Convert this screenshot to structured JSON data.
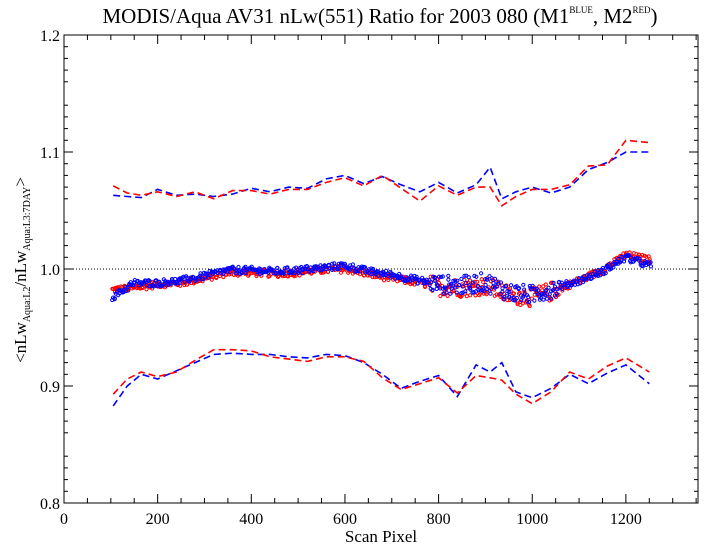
{
  "chart_data": {
    "type": "scatter",
    "title_main": "MODIS/Aqua AV31 nLw(551) Ratio for 2003 080 (M1",
    "title_sup1": "BLUE",
    "title_mid": ", M2",
    "title_sup2": "RED",
    "title_end": ")",
    "xlabel": "Scan Pixel",
    "ylabel_parts": [
      "<nLw",
      "Aqua:L2",
      "/nLw",
      "Aqua:L3:7DAY",
      ">"
    ],
    "xlim": [
      0,
      1354
    ],
    "ylim": [
      0.8,
      1.2
    ],
    "x_ticks": [
      0,
      200,
      400,
      600,
      800,
      1000,
      1200
    ],
    "x_tick_labels": [
      "0",
      "200",
      "400",
      "600",
      "800",
      "1000",
      "1200"
    ],
    "y_ticks": [
      0.8,
      0.9,
      1.0,
      1.1,
      1.2
    ],
    "y_tick_labels": [
      "0.8",
      "0.9",
      "1.0",
      "1.1",
      "1.2"
    ],
    "reference_line": 1.0,
    "colors": {
      "M1": "#0000ff",
      "M2": "#ff0000"
    },
    "mean_profile": {
      "x": [
        100,
        150,
        200,
        250,
        300,
        350,
        400,
        450,
        500,
        550,
        600,
        650,
        700,
        750,
        800,
        850,
        900,
        950,
        1000,
        1050,
        1100,
        1150,
        1200,
        1250
      ],
      "M1": [
        0.975,
        0.988,
        0.988,
        0.99,
        0.994,
        0.999,
        0.999,
        0.998,
        0.999,
        1.001,
        1.003,
        0.998,
        0.995,
        0.991,
        0.987,
        0.986,
        0.989,
        0.98,
        0.978,
        0.984,
        0.99,
        0.998,
        1.01,
        1.003
      ],
      "M2": [
        0.982,
        0.984,
        0.987,
        0.988,
        0.992,
        0.997,
        0.997,
        0.996,
        0.997,
        0.999,
        1.0,
        0.996,
        0.992,
        0.989,
        0.985,
        0.984,
        0.986,
        0.978,
        0.976,
        0.982,
        0.99,
        0.999,
        1.012,
        1.008
      ]
    },
    "upper_band": {
      "x": [
        105,
        135,
        165,
        200,
        240,
        280,
        320,
        360,
        400,
        440,
        480,
        520,
        560,
        600,
        640,
        680,
        720,
        760,
        800,
        840,
        880,
        910,
        935,
        965,
        1000,
        1040,
        1080,
        1120,
        1160,
        1200,
        1250
      ],
      "M1": [
        1.063,
        1.062,
        1.061,
        1.068,
        1.063,
        1.064,
        1.062,
        1.064,
        1.069,
        1.066,
        1.07,
        1.069,
        1.077,
        1.08,
        1.073,
        1.079,
        1.072,
        1.066,
        1.074,
        1.065,
        1.072,
        1.087,
        1.06,
        1.066,
        1.07,
        1.065,
        1.07,
        1.085,
        1.091,
        1.1,
        1.1
      ],
      "M2": [
        1.071,
        1.065,
        1.063,
        1.066,
        1.062,
        1.066,
        1.06,
        1.067,
        1.067,
        1.064,
        1.068,
        1.068,
        1.074,
        1.078,
        1.071,
        1.08,
        1.069,
        1.058,
        1.071,
        1.063,
        1.07,
        1.07,
        1.054,
        1.062,
        1.068,
        1.068,
        1.072,
        1.088,
        1.089,
        1.11,
        1.108
      ]
    },
    "lower_band": {
      "x": [
        105,
        135,
        165,
        200,
        240,
        280,
        320,
        360,
        400,
        440,
        480,
        520,
        560,
        600,
        640,
        680,
        720,
        760,
        800,
        840,
        880,
        910,
        935,
        965,
        1000,
        1040,
        1080,
        1120,
        1160,
        1200,
        1250
      ],
      "M1": [
        0.883,
        0.9,
        0.91,
        0.906,
        0.913,
        0.92,
        0.927,
        0.928,
        0.927,
        0.927,
        0.925,
        0.924,
        0.927,
        0.926,
        0.92,
        0.91,
        0.898,
        0.904,
        0.909,
        0.891,
        0.918,
        0.912,
        0.92,
        0.895,
        0.89,
        0.898,
        0.91,
        0.902,
        0.911,
        0.918,
        0.902
      ],
      "M2": [
        0.893,
        0.906,
        0.912,
        0.908,
        0.912,
        0.922,
        0.931,
        0.931,
        0.93,
        0.925,
        0.923,
        0.921,
        0.925,
        0.925,
        0.921,
        0.907,
        0.897,
        0.902,
        0.907,
        0.894,
        0.909,
        0.907,
        0.905,
        0.893,
        0.885,
        0.895,
        0.912,
        0.906,
        0.917,
        0.924,
        0.912
      ]
    }
  }
}
